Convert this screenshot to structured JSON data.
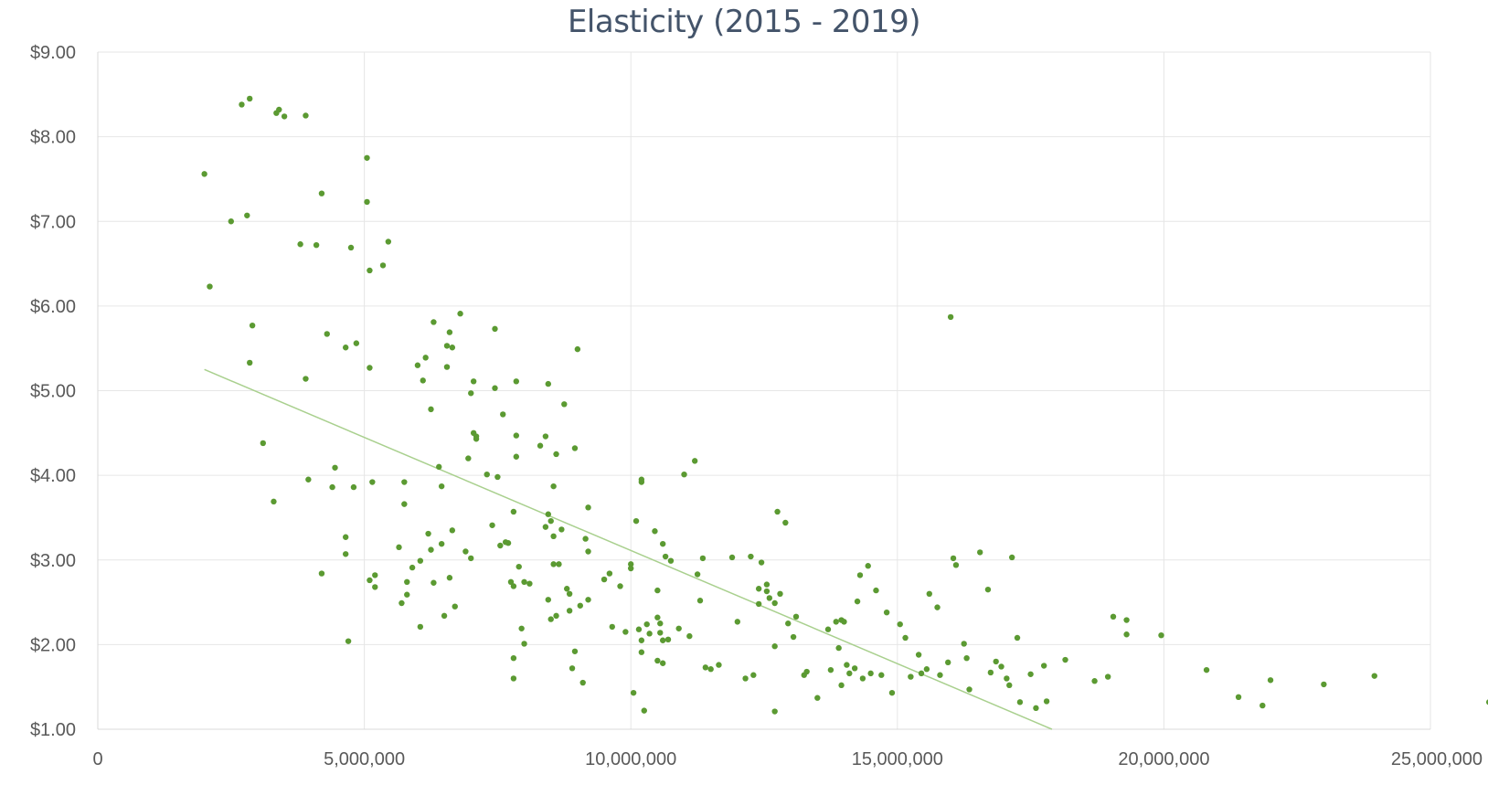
{
  "chart_data": {
    "type": "scatter",
    "title": "Elasticity (2015 -  2019)",
    "xlabel": "",
    "ylabel": "",
    "xlim": [
      0,
      25000000
    ],
    "ylim": [
      1,
      9
    ],
    "x_ticks": [
      0,
      5000000,
      10000000,
      15000000,
      20000000,
      25000000
    ],
    "x_tick_labels": [
      "0",
      "5,000,000",
      "10,000,000",
      "15,000,000",
      "20,000,000",
      "25,000,000"
    ],
    "y_ticks": [
      1,
      2,
      3,
      4,
      5,
      6,
      7,
      8,
      9
    ],
    "y_tick_labels": [
      "$1.00",
      "$2.00",
      "$3.00",
      "$4.00",
      "$5.00",
      "$6.00",
      "$7.00",
      "$8.00",
      "$9.00"
    ],
    "grid": true,
    "legend": "none",
    "colors": {
      "marker": "#5b9a32",
      "trendline": "#a9d08e",
      "grid": "#e6e6e6",
      "axis": "#d9d9d9",
      "title": "#44546a"
    },
    "trendline": {
      "type": "linear",
      "points": [
        [
          2000000,
          5.25
        ],
        [
          17900000,
          1.0
        ]
      ]
    },
    "series": [
      {
        "points": [
          [
            2000000,
            7.56
          ],
          [
            2100000,
            6.23
          ],
          [
            2500000,
            7.0
          ],
          [
            2700000,
            8.38
          ],
          [
            2800000,
            7.07
          ],
          [
            2850000,
            8.45
          ],
          [
            2850000,
            5.33
          ],
          [
            2900000,
            5.77
          ],
          [
            3100000,
            4.38
          ],
          [
            3300000,
            3.69
          ],
          [
            3350000,
            8.28
          ],
          [
            3400000,
            8.32
          ],
          [
            3500000,
            8.24
          ],
          [
            3800000,
            6.73
          ],
          [
            3900000,
            5.14
          ],
          [
            3900000,
            8.25
          ],
          [
            3950000,
            3.95
          ],
          [
            4100000,
            6.72
          ],
          [
            4200000,
            7.33
          ],
          [
            4200000,
            2.84
          ],
          [
            4300000,
            5.67
          ],
          [
            4400000,
            3.86
          ],
          [
            4450000,
            4.09
          ],
          [
            4650000,
            5.51
          ],
          [
            4650000,
            3.27
          ],
          [
            4650000,
            3.07
          ],
          [
            4700000,
            2.04
          ],
          [
            4750000,
            6.69
          ],
          [
            4800000,
            3.86
          ],
          [
            4850000,
            5.56
          ],
          [
            5050000,
            7.75
          ],
          [
            5050000,
            7.23
          ],
          [
            5100000,
            6.42
          ],
          [
            5100000,
            5.27
          ],
          [
            5100000,
            2.76
          ],
          [
            5150000,
            3.92
          ],
          [
            5200000,
            2.82
          ],
          [
            5200000,
            2.68
          ],
          [
            5350000,
            6.48
          ],
          [
            5450000,
            6.76
          ],
          [
            5650000,
            3.15
          ],
          [
            5700000,
            2.49
          ],
          [
            5750000,
            3.92
          ],
          [
            5750000,
            3.66
          ],
          [
            5800000,
            2.74
          ],
          [
            5800000,
            2.59
          ],
          [
            5900000,
            2.91
          ],
          [
            6000000,
            5.3
          ],
          [
            6050000,
            2.21
          ],
          [
            6050000,
            2.99
          ],
          [
            6100000,
            5.12
          ],
          [
            6150000,
            5.39
          ],
          [
            6200000,
            3.31
          ],
          [
            6250000,
            4.78
          ],
          [
            6250000,
            3.12
          ],
          [
            6300000,
            5.81
          ],
          [
            6300000,
            2.73
          ],
          [
            6400000,
            4.1
          ],
          [
            6450000,
            3.19
          ],
          [
            6450000,
            3.87
          ],
          [
            6500000,
            2.34
          ],
          [
            6550000,
            5.28
          ],
          [
            6550000,
            5.53
          ],
          [
            6600000,
            5.69
          ],
          [
            6600000,
            2.79
          ],
          [
            6650000,
            3.35
          ],
          [
            6650000,
            5.51
          ],
          [
            6700000,
            2.45
          ],
          [
            6800000,
            5.91
          ],
          [
            6900000,
            3.1
          ],
          [
            6950000,
            4.2
          ],
          [
            7000000,
            4.97
          ],
          [
            7000000,
            3.02
          ],
          [
            7050000,
            5.11
          ],
          [
            7050000,
            4.5
          ],
          [
            7100000,
            4.46
          ],
          [
            7100000,
            4.43
          ],
          [
            7300000,
            4.01
          ],
          [
            7400000,
            3.41
          ],
          [
            7450000,
            5.73
          ],
          [
            7450000,
            5.03
          ],
          [
            7500000,
            3.98
          ],
          [
            7550000,
            3.17
          ],
          [
            7600000,
            4.72
          ],
          [
            7650000,
            3.21
          ],
          [
            7700000,
            3.2
          ],
          [
            7750000,
            2.74
          ],
          [
            7800000,
            3.57
          ],
          [
            7800000,
            2.69
          ],
          [
            7800000,
            1.84
          ],
          [
            7800000,
            1.6
          ],
          [
            7850000,
            5.11
          ],
          [
            7850000,
            4.47
          ],
          [
            7850000,
            4.22
          ],
          [
            7900000,
            2.92
          ],
          [
            7950000,
            2.19
          ],
          [
            8000000,
            2.74
          ],
          [
            8000000,
            2.01
          ],
          [
            8100000,
            2.72
          ],
          [
            8300000,
            4.35
          ],
          [
            8400000,
            4.46
          ],
          [
            8400000,
            3.39
          ],
          [
            8450000,
            5.08
          ],
          [
            8450000,
            3.54
          ],
          [
            8450000,
            2.53
          ],
          [
            8500000,
            3.46
          ],
          [
            8500000,
            2.3
          ],
          [
            8550000,
            3.87
          ],
          [
            8550000,
            3.28
          ],
          [
            8550000,
            2.95
          ],
          [
            8600000,
            4.25
          ],
          [
            8600000,
            2.34
          ],
          [
            8650000,
            2.95
          ],
          [
            8700000,
            3.36
          ],
          [
            8750000,
            4.84
          ],
          [
            8800000,
            2.66
          ],
          [
            8850000,
            2.6
          ],
          [
            8850000,
            2.4
          ],
          [
            8900000,
            1.72
          ],
          [
            8950000,
            4.32
          ],
          [
            8950000,
            1.92
          ],
          [
            9000000,
            5.49
          ],
          [
            9050000,
            2.46
          ],
          [
            9100000,
            1.55
          ],
          [
            9150000,
            3.25
          ],
          [
            9200000,
            3.62
          ],
          [
            9200000,
            3.1
          ],
          [
            9200000,
            2.53
          ],
          [
            9500000,
            2.77
          ],
          [
            9600000,
            2.84
          ],
          [
            9650000,
            2.21
          ],
          [
            9800000,
            2.69
          ],
          [
            9900000,
            2.15
          ],
          [
            10000000,
            2.95
          ],
          [
            10000000,
            2.9
          ],
          [
            10050000,
            1.43
          ],
          [
            10100000,
            3.46
          ],
          [
            10150000,
            2.18
          ],
          [
            10200000,
            3.92
          ],
          [
            10200000,
            3.95
          ],
          [
            10200000,
            2.05
          ],
          [
            10200000,
            1.91
          ],
          [
            10250000,
            1.22
          ],
          [
            10300000,
            2.24
          ],
          [
            10350000,
            2.13
          ],
          [
            10450000,
            3.34
          ],
          [
            10500000,
            2.64
          ],
          [
            10500000,
            2.32
          ],
          [
            10500000,
            1.81
          ],
          [
            10550000,
            2.25
          ],
          [
            10550000,
            2.14
          ],
          [
            10600000,
            2.05
          ],
          [
            10600000,
            1.78
          ],
          [
            10600000,
            3.19
          ],
          [
            10650000,
            3.04
          ],
          [
            10700000,
            2.06
          ],
          [
            10750000,
            2.99
          ],
          [
            10900000,
            2.19
          ],
          [
            11000000,
            4.01
          ],
          [
            11100000,
            2.1
          ],
          [
            11200000,
            4.17
          ],
          [
            11250000,
            2.83
          ],
          [
            11300000,
            2.52
          ],
          [
            11350000,
            3.02
          ],
          [
            11400000,
            1.73
          ],
          [
            11500000,
            1.71
          ],
          [
            11650000,
            1.76
          ],
          [
            11900000,
            3.03
          ],
          [
            12000000,
            2.27
          ],
          [
            12150000,
            1.6
          ],
          [
            12250000,
            3.04
          ],
          [
            12300000,
            1.64
          ],
          [
            12400000,
            2.66
          ],
          [
            12400000,
            2.48
          ],
          [
            12450000,
            2.97
          ],
          [
            12550000,
            2.63
          ],
          [
            12550000,
            2.71
          ],
          [
            12600000,
            2.55
          ],
          [
            12700000,
            2.49
          ],
          [
            12700000,
            1.98
          ],
          [
            12700000,
            1.21
          ],
          [
            12750000,
            3.57
          ],
          [
            12800000,
            2.6
          ],
          [
            12900000,
            3.44
          ],
          [
            12950000,
            2.25
          ],
          [
            13050000,
            2.09
          ],
          [
            13100000,
            2.33
          ],
          [
            13250000,
            1.64
          ],
          [
            13300000,
            1.68
          ],
          [
            13500000,
            1.37
          ],
          [
            13700000,
            2.18
          ],
          [
            13750000,
            1.7
          ],
          [
            13850000,
            2.27
          ],
          [
            13900000,
            1.96
          ],
          [
            13950000,
            2.29
          ],
          [
            13950000,
            1.52
          ],
          [
            14000000,
            2.27
          ],
          [
            14050000,
            1.76
          ],
          [
            14100000,
            1.66
          ],
          [
            14200000,
            1.72
          ],
          [
            14250000,
            2.51
          ],
          [
            14300000,
            2.82
          ],
          [
            14350000,
            1.6
          ],
          [
            14450000,
            2.93
          ],
          [
            14500000,
            1.66
          ],
          [
            14600000,
            2.64
          ],
          [
            14700000,
            1.64
          ],
          [
            14800000,
            2.38
          ],
          [
            14900000,
            1.43
          ],
          [
            15050000,
            2.24
          ],
          [
            15150000,
            2.08
          ],
          [
            15250000,
            1.62
          ],
          [
            15400000,
            1.88
          ],
          [
            15450000,
            1.66
          ],
          [
            15550000,
            1.71
          ],
          [
            15600000,
            2.6
          ],
          [
            15750000,
            2.44
          ],
          [
            15800000,
            1.64
          ],
          [
            15950000,
            1.79
          ],
          [
            16000000,
            5.87
          ],
          [
            16050000,
            3.02
          ],
          [
            16100000,
            2.94
          ],
          [
            16250000,
            2.01
          ],
          [
            16300000,
            1.84
          ],
          [
            16350000,
            1.47
          ],
          [
            16550000,
            3.09
          ],
          [
            16700000,
            2.65
          ],
          [
            16750000,
            1.67
          ],
          [
            16850000,
            1.8
          ],
          [
            16950000,
            1.74
          ],
          [
            17050000,
            1.6
          ],
          [
            17100000,
            1.52
          ],
          [
            17150000,
            3.03
          ],
          [
            17250000,
            2.08
          ],
          [
            17300000,
            1.32
          ],
          [
            17500000,
            1.65
          ],
          [
            17600000,
            1.25
          ],
          [
            17750000,
            1.75
          ],
          [
            17800000,
            1.33
          ],
          [
            18150000,
            1.82
          ],
          [
            18700000,
            1.57
          ],
          [
            18950000,
            1.62
          ],
          [
            19050000,
            2.33
          ],
          [
            19300000,
            2.29
          ],
          [
            19300000,
            2.12
          ],
          [
            19950000,
            2.11
          ],
          [
            20800000,
            1.7
          ],
          [
            21400000,
            1.38
          ],
          [
            21850000,
            1.28
          ],
          [
            22000000,
            1.58
          ],
          [
            23000000,
            1.53
          ],
          [
            23950000,
            1.63
          ],
          [
            26100000,
            1.32
          ]
        ]
      }
    ]
  }
}
